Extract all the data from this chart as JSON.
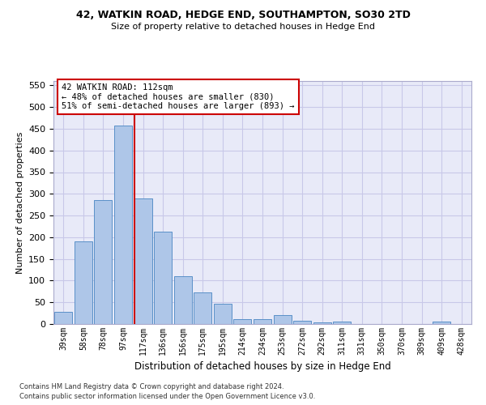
{
  "title1": "42, WATKIN ROAD, HEDGE END, SOUTHAMPTON, SO30 2TD",
  "title2": "Size of property relative to detached houses in Hedge End",
  "xlabel": "Distribution of detached houses by size in Hedge End",
  "ylabel": "Number of detached properties",
  "categories": [
    "39sqm",
    "58sqm",
    "78sqm",
    "97sqm",
    "117sqm",
    "136sqm",
    "156sqm",
    "175sqm",
    "195sqm",
    "214sqm",
    "234sqm",
    "253sqm",
    "272sqm",
    "292sqm",
    "311sqm",
    "331sqm",
    "350sqm",
    "370sqm",
    "389sqm",
    "409sqm",
    "428sqm"
  ],
  "bar_values": [
    28,
    190,
    285,
    457,
    290,
    212,
    110,
    73,
    46,
    12,
    12,
    20,
    8,
    4,
    5,
    0,
    0,
    0,
    0,
    5,
    0
  ],
  "bar_color": "#aec6e8",
  "bar_edgecolor": "#5a90c8",
  "property_line_index": 4,
  "annotation_text": "42 WATKIN ROAD: 112sqm\n← 48% of detached houses are smaller (830)\n51% of semi-detached houses are larger (893) →",
  "annotation_box_facecolor": "#ffffff",
  "annotation_box_edgecolor": "#cc0000",
  "red_line_color": "#cc0000",
  "ylim": [
    0,
    560
  ],
  "yticks": [
    0,
    50,
    100,
    150,
    200,
    250,
    300,
    350,
    400,
    450,
    500,
    550
  ],
  "grid_color": "#c8c8e8",
  "bg_color": "#e8eaf8",
  "footer1": "Contains HM Land Registry data © Crown copyright and database right 2024.",
  "footer2": "Contains public sector information licensed under the Open Government Licence v3.0."
}
